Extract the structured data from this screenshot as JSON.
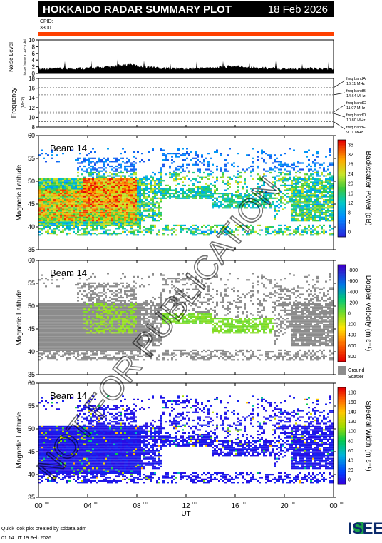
{
  "header": {
    "title": "HOKKAIDO RADAR SUMMARY PLOT",
    "date": "18 Feb 2026",
    "cpid_label": "CPID:",
    "cpid_value": "3300"
  },
  "footer": {
    "line1": "Quick look plot created by sddata.adm",
    "line2": "01:14 UT 19 Feb 2026",
    "logo_text": "ISEE"
  },
  "watermark": "NOT FOR PUBLICATION",
  "chart_data": [
    {
      "type": "area",
      "name": "noise",
      "ylabel": "Noise Level",
      "ylabel_sub": "log10 (Noise in 10^-3 dB)",
      "ylim": [
        0,
        10
      ],
      "yticks": [
        "0",
        "2",
        "4",
        "6",
        "8",
        "10"
      ],
      "x_hours": [
        0,
        2,
        4,
        6,
        7.5,
        8,
        10,
        12,
        14,
        16,
        18,
        20,
        22,
        24
      ],
      "values": [
        1.0,
        1.0,
        1.2,
        1.5,
        2.5,
        1.8,
        1.2,
        1.0,
        1.3,
        1.8,
        1.2,
        1.0,
        1.0,
        1.0
      ]
    },
    {
      "type": "table",
      "name": "frequency",
      "ylabel": "Frequency",
      "yunit": "(MHz)",
      "ylim": [
        8,
        18
      ],
      "yticks": [
        "8",
        "10",
        "12",
        "14",
        "16",
        "18"
      ],
      "bands": [
        {
          "label": "freq bandA",
          "freq": "16.11 MHz",
          "value": 16.11
        },
        {
          "label": "freq bandB",
          "freq": "14.64 MHz",
          "value": 14.64
        },
        {
          "label": "freq bandC",
          "freq": "11.07 MHz",
          "value": 11.07
        },
        {
          "label": "freq bandD",
          "freq": "10.80 MHz",
          "value": 10.8
        },
        {
          "label": "freq bandE",
          "freq": "9.11 MHz",
          "value": 9.11
        }
      ]
    },
    {
      "type": "heatmap",
      "name": "power",
      "beam": "Beam 14",
      "ylabel": "Magnetic Latitude",
      "ylim": [
        35,
        60
      ],
      "yticks": [
        "35",
        "40",
        "45",
        "50",
        "55",
        "60"
      ],
      "colorbar_label": "Backscatter Power (dB)",
      "colorbar_ticks": [
        "0",
        "4",
        "8",
        "12",
        "16",
        "20",
        "24",
        "28",
        "32",
        "36"
      ]
    },
    {
      "type": "heatmap",
      "name": "velocity",
      "beam": "Beam 14",
      "ylabel": "Magnetic Latitude",
      "ylim": [
        35,
        60
      ],
      "yticks": [
        "35",
        "40",
        "45",
        "50",
        "55",
        "60"
      ],
      "colorbar_label": "Doppler Velocity (m s⁻¹)",
      "colorbar_ticks": [
        "-800",
        "-600",
        "-400",
        "-200",
        "0",
        "200",
        "400",
        "600",
        "800"
      ],
      "ground_scatter_label": "Ground Scatter"
    },
    {
      "type": "heatmap",
      "name": "width",
      "beam": "Beam 14",
      "ylabel": "Magnetic Latitude",
      "ylim": [
        35,
        60
      ],
      "yticks": [
        "35",
        "40",
        "45",
        "50",
        "55",
        "60"
      ],
      "colorbar_label": "Spectral Width (m s⁻¹)",
      "colorbar_ticks": [
        "0",
        "20",
        "40",
        "60",
        "80",
        "100",
        "120",
        "140",
        "160",
        "180"
      ]
    }
  ],
  "xaxis": {
    "label": "UT",
    "ticks": [
      {
        "h": "00",
        "m": "00",
        "hour": 0
      },
      {
        "h": "04",
        "m": "00",
        "hour": 4
      },
      {
        "h": "08",
        "m": "00",
        "hour": 8
      },
      {
        "h": "12",
        "m": "00",
        "hour": 12
      },
      {
        "h": "16",
        "m": "00",
        "hour": 16
      },
      {
        "h": "20",
        "m": "00",
        "hour": 20
      },
      {
        "h": "00",
        "m": "00",
        "hour": 24
      }
    ]
  },
  "colors": {
    "cpid_bar": "#ff4000",
    "ground_scatter": "#8c8c8c"
  }
}
